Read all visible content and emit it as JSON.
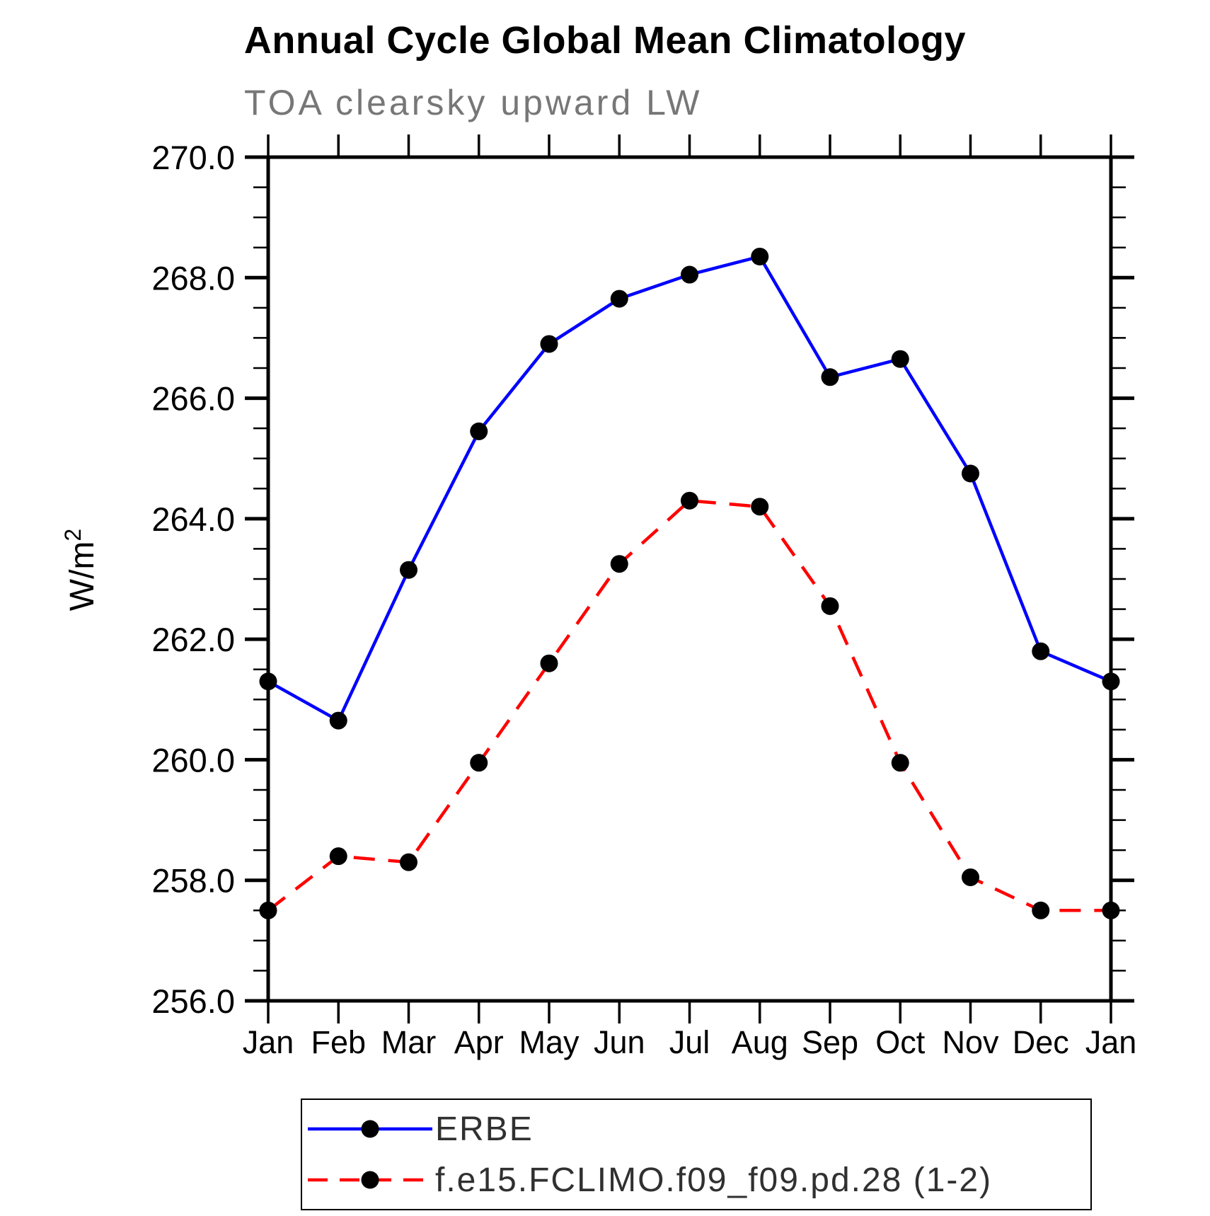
{
  "chart_data": {
    "type": "line",
    "title": "Annual Cycle Global Mean Climatology",
    "subtitle": "TOA clearsky upward LW",
    "ylabel": "W/m²",
    "ylabel_base": "W/m",
    "ylabel_superscript": "2",
    "x_categories": [
      "Jan",
      "Feb",
      "Mar",
      "Apr",
      "May",
      "Jun",
      "Jul",
      "Aug",
      "Sep",
      "Oct",
      "Nov",
      "Dec",
      "Jan"
    ],
    "ylim": [
      256.0,
      270.0
    ],
    "ytick_major_step": 2.0,
    "ytick_minor_step": 0.5,
    "ytick_labels": [
      "270.0",
      "268.0",
      "266.0",
      "264.0",
      "262.0",
      "260.0",
      "258.0",
      "256.0"
    ],
    "grid": false,
    "legend_position": "bottom",
    "series": [
      {
        "name": "ERBE",
        "color": "#0000ff",
        "line_style": "solid",
        "marker": "filled-circle",
        "marker_color": "#000000",
        "values": [
          261.3,
          260.65,
          263.15,
          265.45,
          266.9,
          267.65,
          268.05,
          268.35,
          266.35,
          266.65,
          264.75,
          261.8,
          261.3
        ]
      },
      {
        "name": "f.e15.FCLIMO.f09_f09.pd.28 (1-2)",
        "color": "#ff0000",
        "line_style": "dashed",
        "marker": "filled-circle",
        "marker_color": "#000000",
        "values": [
          257.5,
          258.4,
          258.3,
          259.95,
          261.6,
          263.25,
          264.3,
          264.2,
          262.55,
          259.95,
          258.05,
          257.5,
          257.5
        ]
      }
    ]
  },
  "text_colors": {
    "title": "#000000",
    "subtitle": "#777777",
    "axis_labels": "#000000",
    "legend_labels": "#303030"
  }
}
